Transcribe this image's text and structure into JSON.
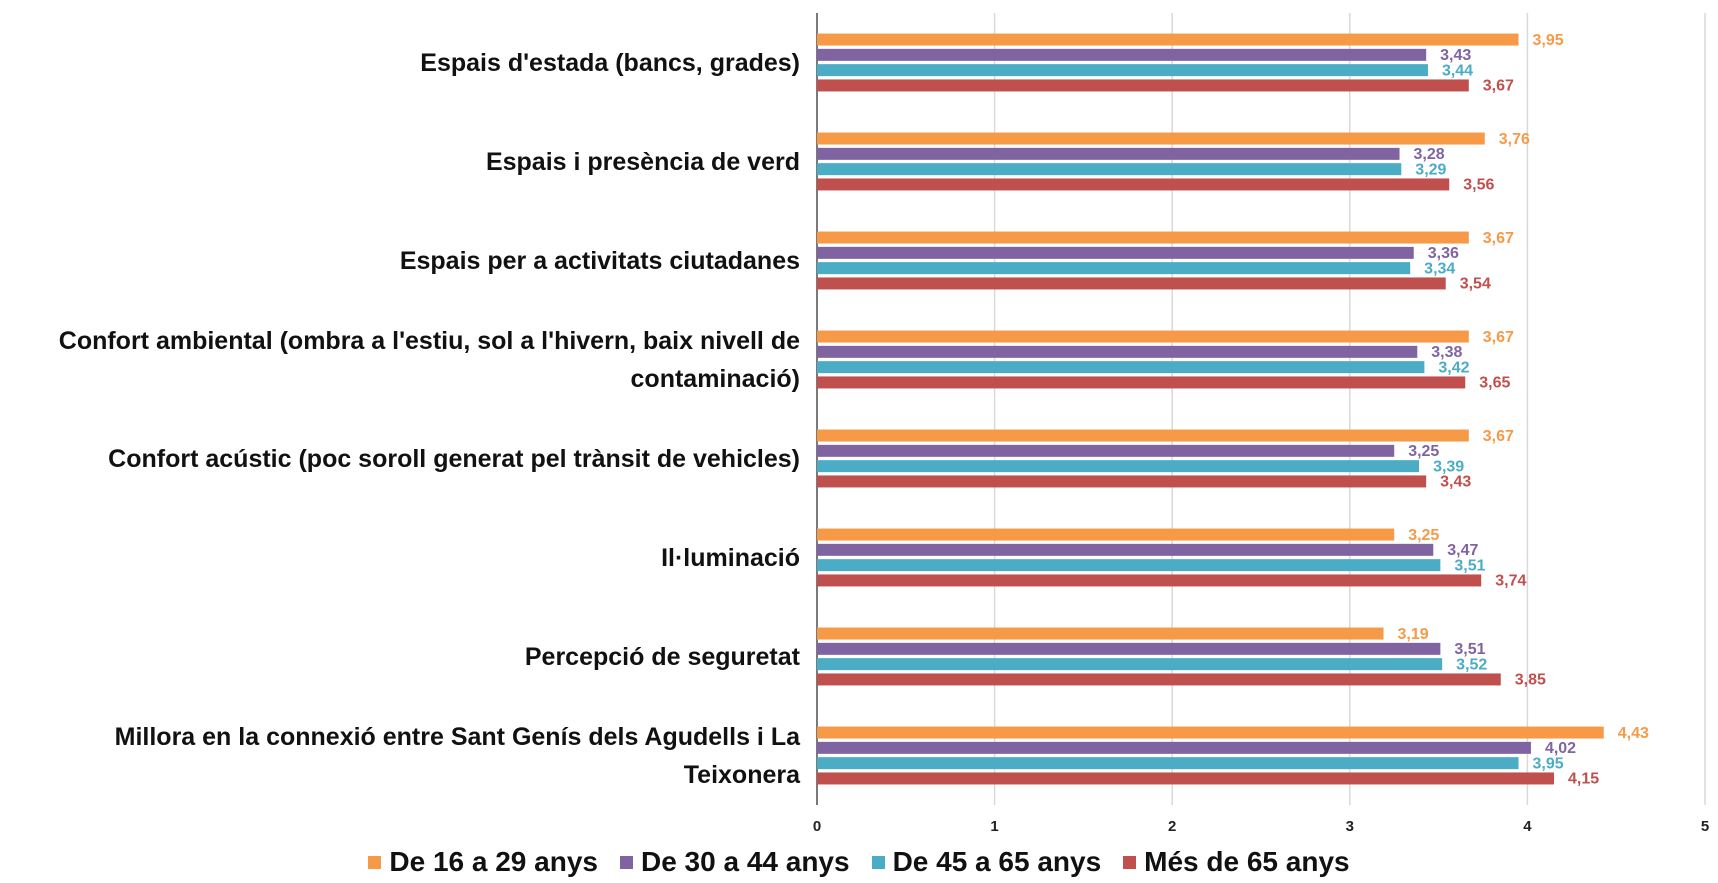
{
  "chart_data": {
    "type": "hbar",
    "categories": [
      "Espais d'estada (bancs, grades)",
      "Espais i presència de verd",
      "Espais per a activitats ciutadanes",
      "Confort ambiental (ombra a l'estiu, sol a l'hivern, baix nivell de contaminació)",
      "Confort acústic (poc soroll generat pel trànsit de vehicles)",
      "Il·luminació",
      "Percepció de seguretat",
      "Millora en la connexió entre Sant Genís dels Agudells i La Teixonera"
    ],
    "series": [
      {
        "name": "De 16 a 29 anys",
        "color": "#f79a48",
        "values": [
          3.95,
          3.76,
          3.67,
          3.67,
          3.67,
          3.25,
          3.19,
          4.43
        ],
        "value_labels": [
          "3,95",
          "3,76",
          "3,67",
          "3,67",
          "3,67",
          "3,25",
          "3,19",
          "4,43"
        ]
      },
      {
        "name": "De 30 a 44 anys",
        "color": "#8064a2",
        "values": [
          3.43,
          3.28,
          3.36,
          3.38,
          3.25,
          3.47,
          3.51,
          4.02
        ],
        "value_labels": [
          "3,43",
          "3,28",
          "3,36",
          "3,38",
          "3,25",
          "3,47",
          "3,51",
          "4,02"
        ]
      },
      {
        "name": "De 45 a 65 anys",
        "color": "#4bacc6",
        "values": [
          3.44,
          3.29,
          3.34,
          3.42,
          3.39,
          3.51,
          3.52,
          3.95
        ],
        "value_labels": [
          "3,44",
          "3,29",
          "3,34",
          "3,42",
          "3,39",
          "3,51",
          "3,52",
          "3,95"
        ]
      },
      {
        "name": "Més de 65 anys",
        "color": "#c0504d",
        "values": [
          3.67,
          3.56,
          3.54,
          3.65,
          3.43,
          3.74,
          3.85,
          4.15
        ],
        "value_labels": [
          "3,67",
          "3,56",
          "3,54",
          "3,65",
          "3,43",
          "3,74",
          "3,85",
          "4,15"
        ]
      }
    ],
    "xlim": [
      0,
      5
    ],
    "xticks": [
      0,
      1,
      2,
      3,
      4,
      5
    ],
    "grid": true,
    "legend": "bottom"
  }
}
